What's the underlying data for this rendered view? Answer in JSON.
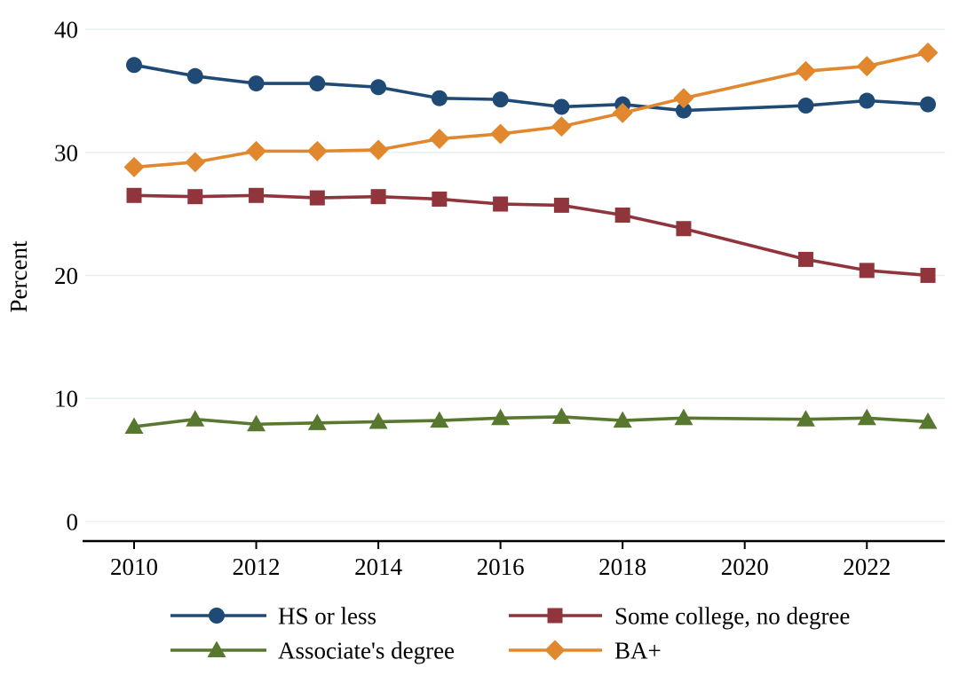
{
  "figure": {
    "background": "#ffffff",
    "grid_color": "#e9f2f2",
    "axis_color": "#000000",
    "text_color": "#000000"
  },
  "chart_data": {
    "type": "line",
    "title": "",
    "xlabel": "",
    "ylabel": "Percent",
    "x": [
      2010,
      2011,
      2012,
      2013,
      2014,
      2015,
      2016,
      2017,
      2018,
      2019,
      2021,
      2022,
      2023
    ],
    "xticks": [
      2010,
      2012,
      2014,
      2016,
      2018,
      2020,
      2022
    ],
    "yticks": [
      0,
      10,
      20,
      30,
      40
    ],
    "xlim": [
      2009.2,
      2023.3
    ],
    "ylim": [
      0,
      40
    ],
    "grid": true,
    "legend_position": "bottom",
    "legend_columns": 2,
    "series": [
      {
        "name": "HS or less",
        "color": "#1F4A75",
        "marker": "circle",
        "values": [
          37.1,
          36.2,
          35.6,
          35.6,
          35.3,
          34.4,
          34.3,
          33.7,
          33.9,
          33.4,
          33.8,
          34.2,
          33.9
        ]
      },
      {
        "name": "Some college, no degree",
        "color": "#8F353B",
        "marker": "square",
        "values": [
          26.5,
          26.4,
          26.5,
          26.3,
          26.4,
          26.2,
          25.8,
          25.7,
          24.9,
          23.8,
          21.3,
          20.4,
          20.0
        ]
      },
      {
        "name": "Associate's degree",
        "color": "#58772F",
        "marker": "triangle",
        "values": [
          7.7,
          8.3,
          7.9,
          8.0,
          8.1,
          8.2,
          8.4,
          8.5,
          8.2,
          8.4,
          8.3,
          8.4,
          8.1
        ]
      },
      {
        "name": "BA+",
        "color": "#E1882E",
        "marker": "diamond",
        "values": [
          28.8,
          29.2,
          30.1,
          30.1,
          30.2,
          31.1,
          31.5,
          32.1,
          33.2,
          34.4,
          36.6,
          37.0,
          38.1
        ]
      }
    ]
  }
}
